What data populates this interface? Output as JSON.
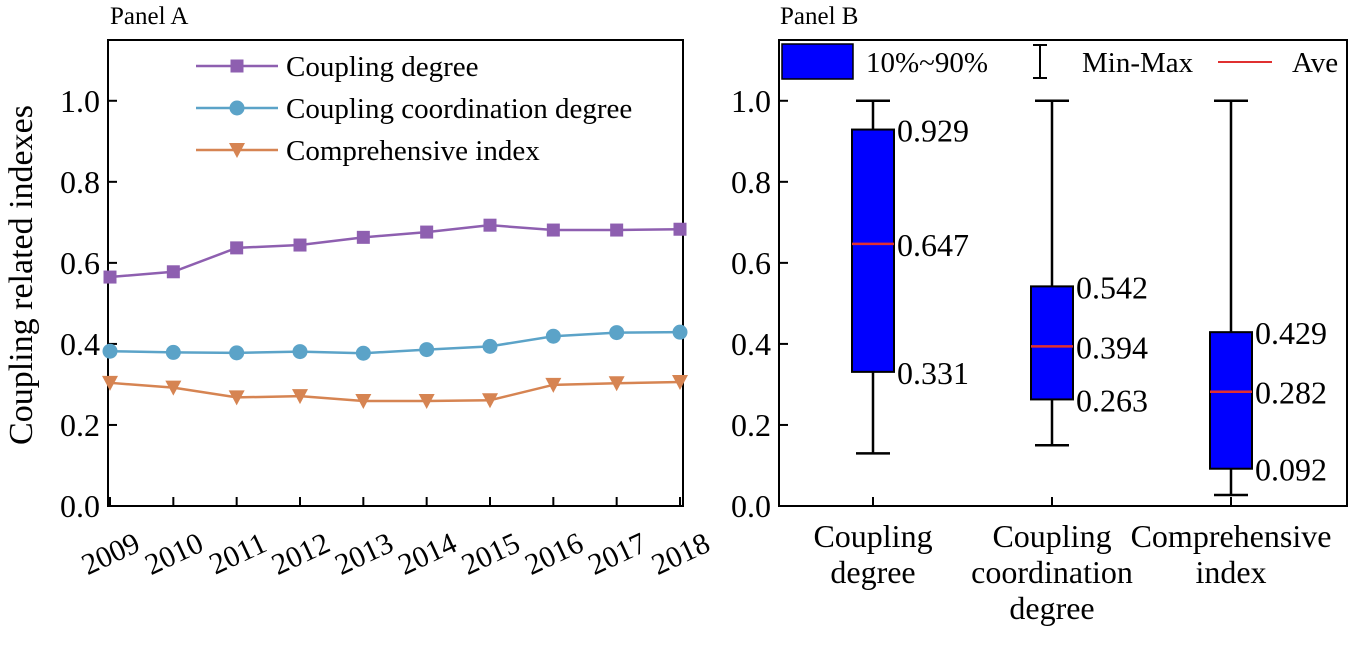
{
  "chart_data": [
    {
      "panel_label": "Panel A",
      "type": "line",
      "title": "",
      "xlabel": "",
      "ylabel": "Coupling related indexes",
      "ylim": [
        0,
        1.15
      ],
      "yticks": [
        "0.0",
        "0.2",
        "0.4",
        "0.6",
        "0.8",
        "1.0"
      ],
      "categories": [
        "2009",
        "2010",
        "2011",
        "2012",
        "2013",
        "2014",
        "2015",
        "2016",
        "2017",
        "2018"
      ],
      "legend_position": "top",
      "series": [
        {
          "name": "Coupling degree",
          "color": "#8e5fb0",
          "marker": "square",
          "values": [
            0.565,
            0.578,
            0.637,
            0.644,
            0.663,
            0.676,
            0.693,
            0.681,
            0.681,
            0.683
          ]
        },
        {
          "name": "Coupling coordination degree",
          "color": "#5ba3c8",
          "marker": "circle",
          "values": [
            0.382,
            0.379,
            0.378,
            0.381,
            0.377,
            0.386,
            0.394,
            0.419,
            0.428,
            0.429
          ]
        },
        {
          "name": "Comprehensive index",
          "color": "#d68452",
          "marker": "triangle-down",
          "values": [
            0.304,
            0.292,
            0.268,
            0.271,
            0.259,
            0.259,
            0.261,
            0.299,
            0.303,
            0.306
          ]
        }
      ]
    },
    {
      "panel_label": "Panel B",
      "type": "box",
      "title": "",
      "ylim": [
        0,
        1.15
      ],
      "yticks": [
        "0.0",
        "0.2",
        "0.4",
        "0.6",
        "0.8",
        "1.0"
      ],
      "legend_position": "top",
      "legend": {
        "box_label": "10%~90%",
        "whisker_label": "Min-Max",
        "mean_label": "Ave"
      },
      "box_color": "#0000ff",
      "mean_color": "#e03030",
      "boxes": [
        {
          "label_lines": [
            "Coupling",
            "degree"
          ],
          "min": 0.13,
          "max": 1.0,
          "low": 0.331,
          "high": 0.929,
          "mean": 0.647,
          "low_label": "0.331",
          "high_label": "0.929",
          "mean_label": "0.647"
        },
        {
          "label_lines": [
            "Coupling",
            "coordination",
            "degree"
          ],
          "min": 0.15,
          "max": 1.0,
          "low": 0.263,
          "high": 0.542,
          "mean": 0.394,
          "low_label": "0.263",
          "high_label": "0.542",
          "mean_label": "0.394"
        },
        {
          "label_lines": [
            "Comprehensive",
            "index"
          ],
          "min": 0.027,
          "max": 1.0,
          "low": 0.092,
          "high": 0.429,
          "mean": 0.282,
          "low_label": "0.092",
          "high_label": "0.429",
          "mean_label": "0.282"
        }
      ]
    }
  ]
}
